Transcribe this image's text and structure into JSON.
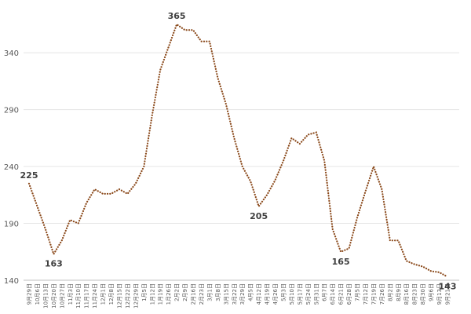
{
  "chart_data": {
    "type": "line",
    "categories": [
      "9月29日",
      "10月6日",
      "10月13日",
      "10月20日",
      "10月27日",
      "11月3日",
      "11月10日",
      "11月17日",
      "11月24日",
      "12月1日",
      "12月8日",
      "12月15日",
      "12月22日",
      "12月29日",
      "1月5日",
      "1月12日",
      "1月19日",
      "1月26日",
      "2月2日",
      "2月9日",
      "2月16日",
      "2月23日",
      "3月1日",
      "3月8日",
      "3月15日",
      "3月22日",
      "3月29日",
      "4月5日",
      "4月12日",
      "4月19日",
      "4月26日",
      "5月3日",
      "5月10日",
      "5月17日",
      "5月24日",
      "5月31日",
      "6月7日",
      "6月14日",
      "6月21日",
      "6月28日",
      "7月5日",
      "7月12日",
      "7月19日",
      "7月26日",
      "8月2日",
      "8月9日",
      "8月16日",
      "8月23日",
      "8月30日",
      "9月6日",
      "9月13日",
      "9月21日"
    ],
    "values": [
      225,
      205,
      185,
      163,
      175,
      193,
      190,
      208,
      220,
      216,
      216,
      220,
      216,
      225,
      240,
      285,
      325,
      345,
      365,
      360,
      360,
      350,
      350,
      318,
      295,
      265,
      240,
      227,
      205,
      215,
      228,
      245,
      265,
      260,
      268,
      270,
      245,
      185,
      165,
      168,
      195,
      218,
      240,
      220,
      175,
      175,
      157,
      154,
      152,
      148,
      147,
      143
    ],
    "value_labels": [
      "225",
      null,
      null,
      "163",
      null,
      null,
      null,
      null,
      null,
      null,
      null,
      null,
      null,
      null,
      null,
      null,
      null,
      null,
      "365",
      null,
      null,
      null,
      null,
      null,
      null,
      null,
      null,
      null,
      "205",
      null,
      null,
      null,
      null,
      null,
      null,
      null,
      null,
      null,
      "165",
      null,
      null,
      null,
      null,
      null,
      null,
      null,
      null,
      null,
      null,
      null,
      null,
      "143"
    ],
    "color": "#8b4a1c",
    "ylim": [
      140,
      365
    ],
    "yticks": [
      140,
      190,
      240,
      290,
      340
    ],
    "grid": true
  }
}
